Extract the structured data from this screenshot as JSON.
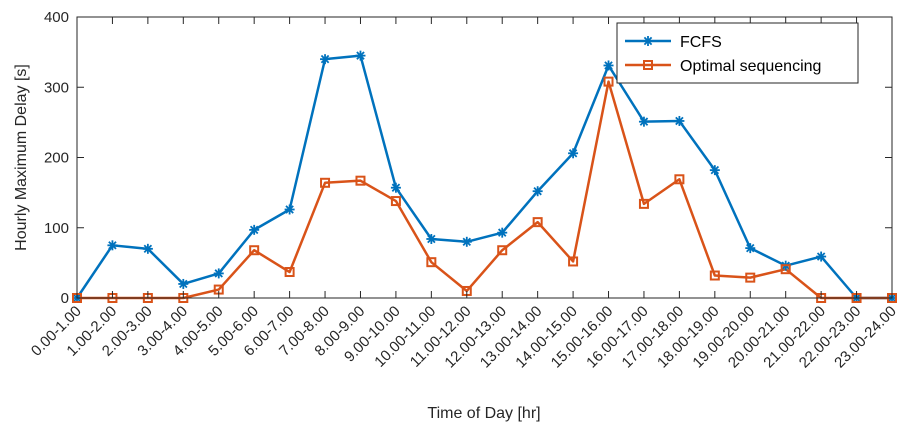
{
  "chart_data": {
    "type": "line",
    "title": "",
    "xlabel": "Time of Day [hr]",
    "ylabel": "Hourly Maximum Delay [s]",
    "ylim": [
      0,
      400
    ],
    "yticks": [
      0,
      100,
      200,
      300,
      400
    ],
    "grid": false,
    "legend_position": "top-right",
    "categories": [
      "0.00-1.00",
      "1.00-2.00",
      "2.00-3.00",
      "3.00-4.00",
      "4.00-5.00",
      "5.00-6.00",
      "6.00-7.00",
      "7.00-8.00",
      "8.00-9.00",
      "9.00-10.00",
      "10.00-11.00",
      "11.00-12.00",
      "12.00-13.00",
      "13.00-14.00",
      "14.00-15.00",
      "15.00-16.00",
      "16.00-17.00",
      "17.00-18.00",
      "18.00-19.00",
      "19.00-20.00",
      "20.00-21.00",
      "21.00-22.00",
      "22.00-23.00",
      "23.00-24.00"
    ],
    "series": [
      {
        "name": "FCFS",
        "color": "#0072BD",
        "marker": "asterisk",
        "values": [
          0,
          75,
          70,
          20,
          35,
          97,
          126,
          340,
          345,
          157,
          84,
          80,
          93,
          152,
          206,
          331,
          251,
          252,
          182,
          71,
          46,
          59,
          0,
          0
        ]
      },
      {
        "name": "Optimal sequencing",
        "color": "#D95319",
        "marker": "square",
        "values": [
          0,
          0,
          0,
          0,
          12,
          68,
          37,
          164,
          167,
          138,
          51,
          10,
          68,
          108,
          52,
          308,
          134,
          169,
          32,
          29,
          41,
          0,
          0,
          0
        ]
      }
    ]
  }
}
